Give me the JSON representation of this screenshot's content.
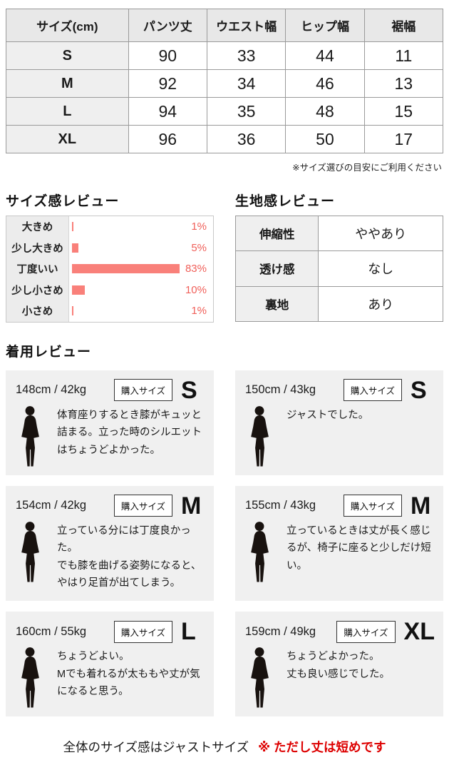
{
  "size_table": {
    "headers": [
      "サイズ(cm)",
      "パンツ丈",
      "ウエスト幅",
      "ヒップ幅",
      "裾幅"
    ],
    "rows": [
      {
        "size": "S",
        "values": [
          "90",
          "33",
          "44",
          "11"
        ]
      },
      {
        "size": "M",
        "values": [
          "92",
          "34",
          "46",
          "13"
        ]
      },
      {
        "size": "L",
        "values": [
          "94",
          "35",
          "48",
          "15"
        ]
      },
      {
        "size": "XL",
        "values": [
          "96",
          "36",
          "50",
          "17"
        ]
      }
    ],
    "note": "※サイズ選びの目安にご利用ください"
  },
  "chart_data": {
    "type": "bar",
    "orientation": "horizontal",
    "title": "サイズ感レビュー",
    "categories": [
      "大きめ",
      "少し大きめ",
      "丁度いい",
      "少し小さめ",
      "小さめ"
    ],
    "values": [
      1,
      5,
      83,
      10,
      1
    ],
    "value_labels": [
      "1%",
      "5%",
      "83%",
      "10%",
      "1%"
    ],
    "xlim": [
      0,
      100
    ],
    "bar_color": "#f9807a",
    "label_color": "#f0605a",
    "legend": "none",
    "grid": false
  },
  "fabric_review": {
    "title": "生地感レビュー",
    "rows": [
      {
        "label": "伸縮性",
        "value": "ややあり"
      },
      {
        "label": "透け感",
        "value": "なし"
      },
      {
        "label": "裏地",
        "value": "あり"
      }
    ]
  },
  "wear_reviews": {
    "title": "着用レビュー",
    "badge_label": "購入サイズ",
    "cards": [
      {
        "profile": "148cm / 42kg",
        "size": "S",
        "comment": "体育座りするとき膝がキュッと詰まる。立った時のシルエットはちょうどよかった。"
      },
      {
        "profile": "150cm / 43kg",
        "size": "S",
        "comment": "ジャストでした。"
      },
      {
        "profile": "154cm / 42kg",
        "size": "M",
        "comment": "立っている分には丁度良かった。\nでも膝を曲げる姿勢になると、やはり足首が出てしまう。"
      },
      {
        "profile": "155cm / 43kg",
        "size": "M",
        "comment": "立っているときは丈が長く感じるが、椅子に座ると少しだけ短い。"
      },
      {
        "profile": "160cm / 55kg",
        "size": "L",
        "comment": "ちょうどよい。\nMでも着れるが太ももや丈が気になると思う。"
      },
      {
        "profile": "159cm / 49kg",
        "size": "XL",
        "comment": "ちょうどよかった。\n丈も良い感じでした。"
      }
    ]
  },
  "footer": {
    "main": "全体のサイズ感はジャストサイズ",
    "warning": "※ ただし丈は短めです"
  },
  "colors": {
    "bar": "#f9807a",
    "percent_text": "#f0605a",
    "warning_red": "#dd0000",
    "table_header_bg": "#e8e8e8",
    "label_cell_bg": "#efefef",
    "card_bg": "#f0f0f0"
  }
}
